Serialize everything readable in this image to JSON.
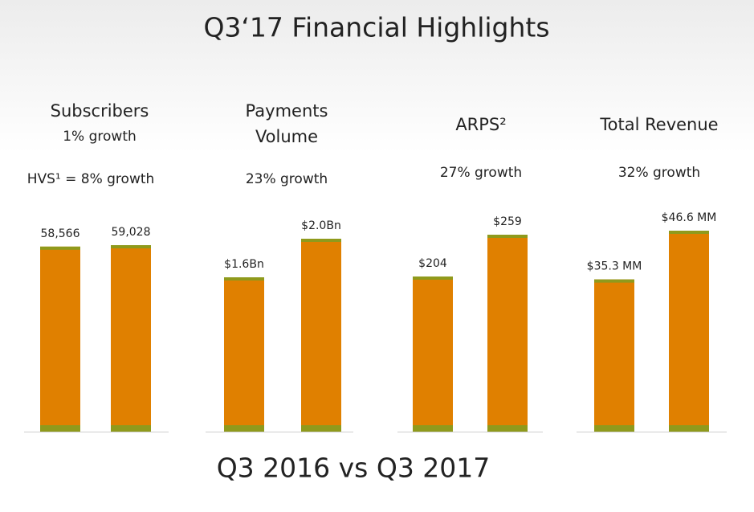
{
  "title": "Q3‘17 Financial Highlights",
  "footer": "Q3 2016 vs Q3 2017",
  "chart_data": [
    {
      "type": "bar",
      "title": "Subscribers",
      "subtitle": "1% growth",
      "annotation": "HVS¹ = 8% growth",
      "values": [
        58566,
        59028
      ],
      "value_labels": [
        "58,566",
        "59,028"
      ],
      "color": "#e08000"
    },
    {
      "type": "bar",
      "title": "Payments Volume",
      "subtitle": "23% growth",
      "values": [
        1.6,
        2.0
      ],
      "value_labels": [
        "$1.6Bn",
        "$2.0Bn"
      ],
      "color": "#e08000"
    },
    {
      "type": "bar",
      "title": "ARPS²",
      "subtitle": "27% growth",
      "values": [
        204,
        259
      ],
      "value_labels": [
        "$204",
        "$259"
      ],
      "color": "#e08000"
    },
    {
      "type": "bar",
      "title": "Total Revenue",
      "subtitle": "32% growth",
      "values": [
        35.3,
        46.6
      ],
      "value_labels": [
        "$35.3 MM",
        "$46.6 MM"
      ],
      "color": "#e08000"
    }
  ]
}
